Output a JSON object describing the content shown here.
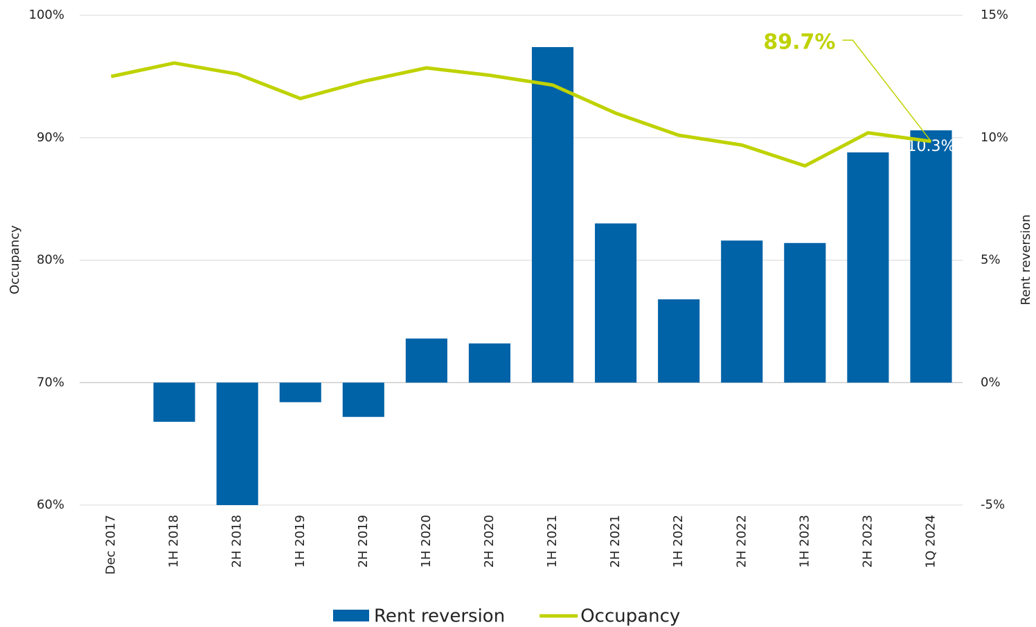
{
  "chart_data": {
    "type": "combo",
    "categories": [
      "Dec 2017",
      "1H 2018",
      "2H 2018",
      "1H 2019",
      "2H 2019",
      "1H 2020",
      "2H 2020",
      "1H 2021",
      "2H 2021",
      "1H 2022",
      "2H 2022",
      "1H 2023",
      "2H 2023",
      "1Q 2024"
    ],
    "series": [
      {
        "name": "Rent reversion",
        "type": "bar",
        "axis": "y2",
        "color": "#0062a7",
        "values": [
          null,
          -1.6,
          -5.0,
          -0.8,
          -1.4,
          1.8,
          1.6,
          13.7,
          6.5,
          3.4,
          5.8,
          5.7,
          9.4,
          10.3
        ],
        "value_labels": [
          null,
          null,
          null,
          null,
          null,
          null,
          null,
          null,
          null,
          null,
          null,
          null,
          null,
          "10.3%"
        ]
      },
      {
        "name": "Occupancy",
        "type": "line",
        "axis": "y",
        "color": "#bfd200",
        "values": [
          95.0,
          96.1,
          95.2,
          93.2,
          94.6,
          95.7,
          95.1,
          94.3,
          92.0,
          90.2,
          89.4,
          87.7,
          90.4,
          89.7
        ],
        "value_labels": [
          null,
          null,
          null,
          null,
          null,
          null,
          null,
          null,
          null,
          null,
          null,
          null,
          null,
          "89.7%"
        ]
      }
    ],
    "ylabel": "Occupancy",
    "y2label": "Rent reversion",
    "ylim": [
      60,
      100
    ],
    "yticks": [
      {
        "value": 60,
        "label": "60%"
      },
      {
        "value": 70,
        "label": "70%"
      },
      {
        "value": 80,
        "label": "80%"
      },
      {
        "value": 90,
        "label": "90%"
      },
      {
        "value": 100,
        "label": "100%"
      }
    ],
    "y2lim": [
      -5,
      15
    ],
    "y2ticks": [
      {
        "value": -5,
        "label": "-5%"
      },
      {
        "value": 0,
        "label": "0%"
      },
      {
        "value": 5,
        "label": "5%"
      },
      {
        "value": 10,
        "label": "10%"
      },
      {
        "value": 15,
        "label": "15%"
      }
    ],
    "grid": true,
    "legend": "bottom"
  }
}
